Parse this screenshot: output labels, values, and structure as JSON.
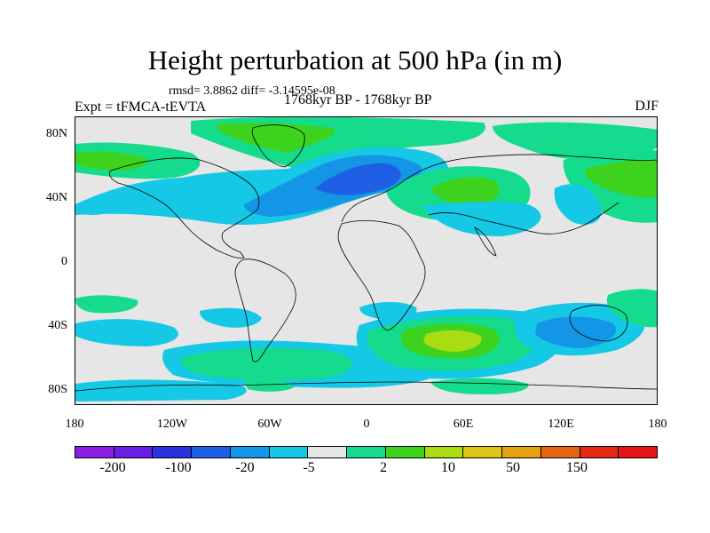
{
  "title": "Height perturbation at 500 hPa (in m)",
  "stats": "rmsd= 3.8862 diff= -3.14595e-08",
  "left_header": "Expt = tFMCA-tEVTA",
  "center_header": "1768kyr BP - 1768kyr BP",
  "right_header": "DJF",
  "lat_labels": [
    "80N",
    "40N",
    "0",
    "40S",
    "80S"
  ],
  "lon_labels": [
    "180",
    "120W",
    "60W",
    "0",
    "60E",
    "120E",
    "180"
  ],
  "legend": {
    "labels": [
      "-200",
      "-100",
      "-20",
      "-5",
      "2",
      "10",
      "50",
      "150"
    ],
    "colors": [
      "#8c1fe6",
      "#6a1ee6",
      "#2a32e0",
      "#1e5fe6",
      "#1496e6",
      "#14c8e6",
      "#e6e6e6",
      "#14dc8c",
      "#3cd21e",
      "#aadc14",
      "#dcc814",
      "#e6a014",
      "#e66414",
      "#e62814",
      "#e61414"
    ]
  },
  "colors": {
    "neutral": "#e6e6e6",
    "lightblue": "#14c8e6",
    "blue": "#1496e6",
    "darkblue": "#1e5fe6",
    "teal": "#14dc8c",
    "green": "#3cd21e",
    "yellowgreen": "#aadc14",
    "yellow": "#dcc814"
  }
}
